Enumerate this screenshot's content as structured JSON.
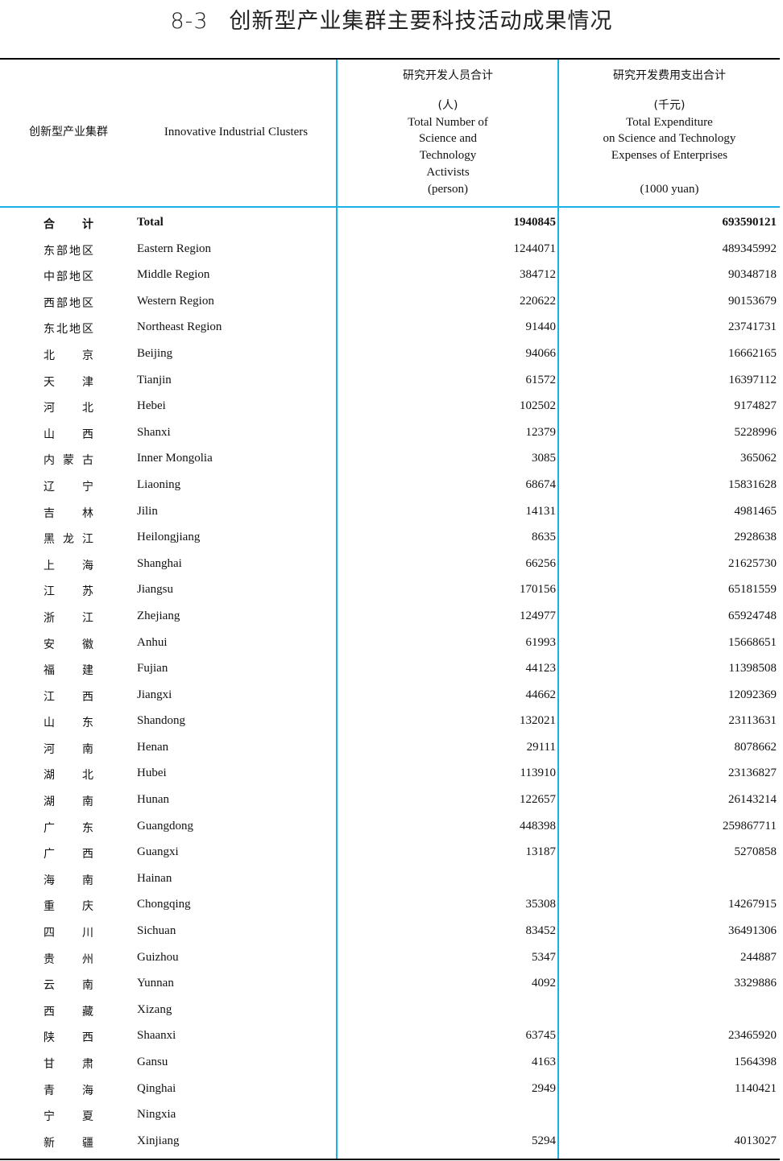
{
  "title": {
    "number": "8-3",
    "text": "创新型产业集群主要科技活动成果情况"
  },
  "header": {
    "col_cn": "创新型产业集群",
    "col_en": "Innovative Industrial Clusters",
    "personnel": {
      "cn": "研究开发人员合计",
      "unit_cn": "(人)",
      "en_lines": [
        "Total Number of",
        "Science and",
        "Technology",
        "Activists"
      ],
      "unit_en": "(person)"
    },
    "expenditure": {
      "cn": "研究开发费用支出合计",
      "unit_cn": "(千元)",
      "en_lines": [
        "Total Expenditure",
        "on Science and Technology",
        "Expenses of Enterprises"
      ],
      "unit_en": "(1000 yuan)"
    }
  },
  "rows": [
    {
      "cn": "合计",
      "en": "Total",
      "personnel": "1940845",
      "expenditure": "693590121",
      "bold": true
    },
    {
      "cn": "东部地区",
      "en": "Eastern Region",
      "personnel": "1244071",
      "expenditure": "489345992"
    },
    {
      "cn": "中部地区",
      "en": "Middle Region",
      "personnel": "384712",
      "expenditure": "90348718"
    },
    {
      "cn": "西部地区",
      "en": "Western Region",
      "personnel": "220622",
      "expenditure": "90153679"
    },
    {
      "cn": "东北地区",
      "en": "Northeast Region",
      "personnel": "91440",
      "expenditure": "23741731"
    },
    {
      "cn": "北京",
      "en": "Beijing",
      "personnel": "94066",
      "expenditure": "16662165"
    },
    {
      "cn": "天津",
      "en": "Tianjin",
      "personnel": "61572",
      "expenditure": "16397112"
    },
    {
      "cn": "河北",
      "en": "Hebei",
      "personnel": "102502",
      "expenditure": "9174827"
    },
    {
      "cn": "山西",
      "en": "Shanxi",
      "personnel": "12379",
      "expenditure": "5228996"
    },
    {
      "cn": "内蒙古",
      "en": "Inner Mongolia",
      "personnel": "3085",
      "expenditure": "365062"
    },
    {
      "cn": "辽宁",
      "en": "Liaoning",
      "personnel": "68674",
      "expenditure": "15831628"
    },
    {
      "cn": "吉林",
      "en": "Jilin",
      "personnel": "14131",
      "expenditure": "4981465"
    },
    {
      "cn": "黑龙江",
      "en": "Heilongjiang",
      "personnel": "8635",
      "expenditure": "2928638"
    },
    {
      "cn": "上海",
      "en": "Shanghai",
      "personnel": "66256",
      "expenditure": "21625730"
    },
    {
      "cn": "江苏",
      "en": "Jiangsu",
      "personnel": "170156",
      "expenditure": "65181559"
    },
    {
      "cn": "浙江",
      "en": "Zhejiang",
      "personnel": "124977",
      "expenditure": "65924748"
    },
    {
      "cn": "安徽",
      "en": "Anhui",
      "personnel": "61993",
      "expenditure": "15668651"
    },
    {
      "cn": "福建",
      "en": "Fujian",
      "personnel": "44123",
      "expenditure": "11398508"
    },
    {
      "cn": "江西",
      "en": "Jiangxi",
      "personnel": "44662",
      "expenditure": "12092369"
    },
    {
      "cn": "山东",
      "en": "Shandong",
      "personnel": "132021",
      "expenditure": "23113631"
    },
    {
      "cn": "河南",
      "en": "Henan",
      "personnel": "29111",
      "expenditure": "8078662"
    },
    {
      "cn": "湖北",
      "en": "Hubei",
      "personnel": "113910",
      "expenditure": "23136827"
    },
    {
      "cn": "湖南",
      "en": "Hunan",
      "personnel": "122657",
      "expenditure": "26143214"
    },
    {
      "cn": "广东",
      "en": "Guangdong",
      "personnel": "448398",
      "expenditure": "259867711"
    },
    {
      "cn": "广西",
      "en": "Guangxi",
      "personnel": "13187",
      "expenditure": "5270858"
    },
    {
      "cn": "海南",
      "en": "Hainan",
      "personnel": "",
      "expenditure": ""
    },
    {
      "cn": "重庆",
      "en": "Chongqing",
      "personnel": "35308",
      "expenditure": "14267915"
    },
    {
      "cn": "四川",
      "en": "Sichuan",
      "personnel": "83452",
      "expenditure": "36491306"
    },
    {
      "cn": "贵州",
      "en": "Guizhou",
      "personnel": "5347",
      "expenditure": "244887"
    },
    {
      "cn": "云南",
      "en": "Yunnan",
      "personnel": "4092",
      "expenditure": "3329886"
    },
    {
      "cn": "西藏",
      "en": "Xizang",
      "personnel": "",
      "expenditure": ""
    },
    {
      "cn": "陕西",
      "en": "Shaanxi",
      "personnel": "63745",
      "expenditure": "23465920"
    },
    {
      "cn": "甘肃",
      "en": "Gansu",
      "personnel": "4163",
      "expenditure": "1564398"
    },
    {
      "cn": "青海",
      "en": "Qinghai",
      "personnel": "2949",
      "expenditure": "1140421"
    },
    {
      "cn": "宁夏",
      "en": "Ningxia",
      "personnel": "",
      "expenditure": ""
    },
    {
      "cn": "新疆",
      "en": "Xinjiang",
      "personnel": "5294",
      "expenditure": "4013027"
    }
  ],
  "colors": {
    "rule": "#000000",
    "accent_rule": "#1ab0e8"
  }
}
